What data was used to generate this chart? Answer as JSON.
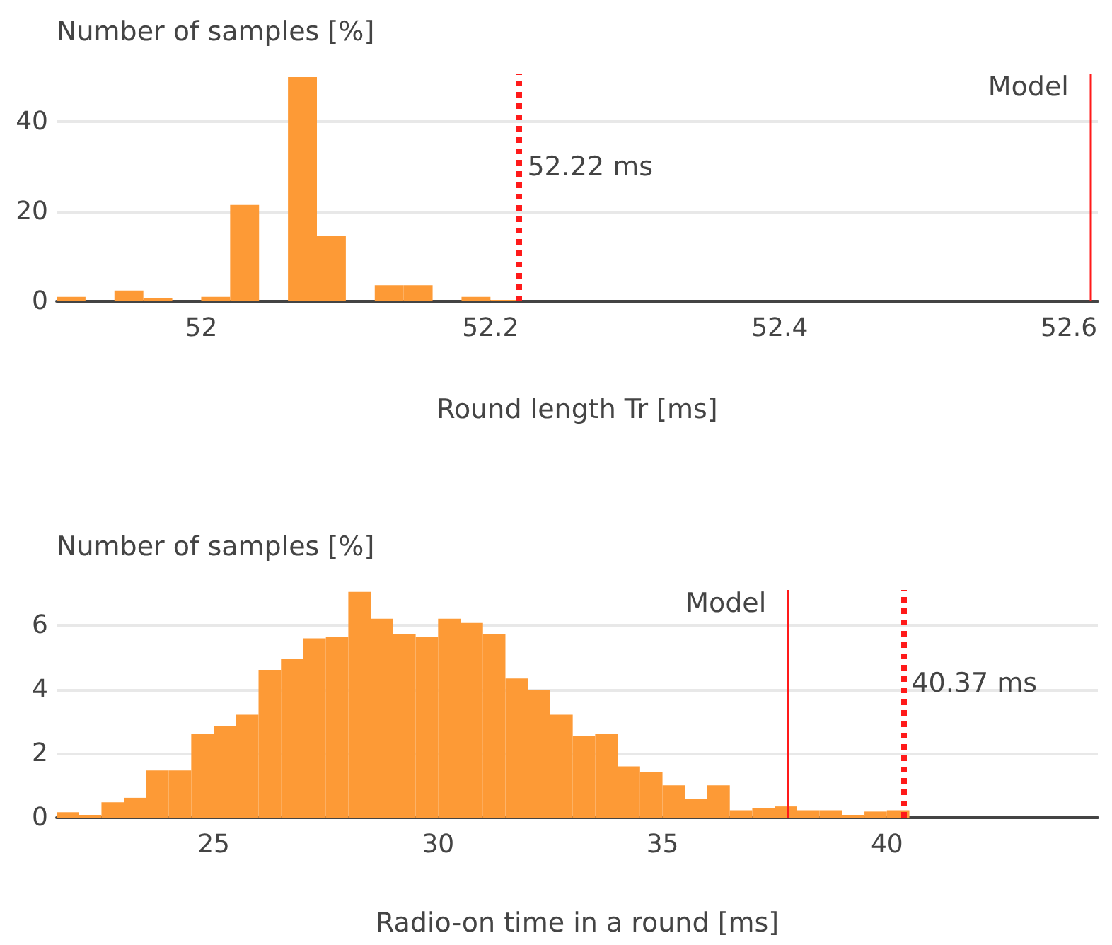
{
  "chart_data": [
    {
      "type": "histogram",
      "ylabel": "Number of samples [%]",
      "xlabel": "Round length Tr [ms]",
      "bins": [
        51.9,
        51.92,
        51.94,
        51.96,
        51.98,
        52.0,
        52.02,
        52.04,
        52.06,
        52.08,
        52.1,
        52.12,
        52.14,
        52.16,
        52.18,
        52.2,
        52.22
      ],
      "values": [
        1.0,
        0,
        2.4,
        0.7,
        0,
        1.0,
        21.5,
        0,
        50,
        14.5,
        0,
        3.6,
        3.6,
        0,
        1.0,
        0.3
      ],
      "color": "#fd9a36",
      "xlim": [
        51.9,
        52.62
      ],
      "xticks": [
        52,
        52.2,
        52.4,
        52.6
      ],
      "ylim": [
        0,
        50.8
      ],
      "yticks": [
        0,
        20,
        40
      ],
      "grid": "y",
      "ref_lines": [
        {
          "axis": "x",
          "value": 52.22,
          "label": "52.22 ms",
          "color": "#ff1a1a",
          "line_style": "dotted"
        },
        {
          "axis": "x",
          "value": 52.615,
          "label": "Model",
          "color": "#ff1a1a",
          "line_style": "solid"
        }
      ]
    },
    {
      "type": "histogram",
      "ylabel": "Number of samples [%]",
      "xlabel": "Radio-on time in a round [ms]",
      "bins": [
        21.5,
        22.0,
        22.5,
        23.0,
        23.5,
        24.0,
        24.5,
        25.0,
        25.5,
        26.0,
        26.5,
        27.0,
        27.5,
        28.0,
        28.5,
        29.0,
        29.5,
        30.0,
        30.5,
        31.0,
        31.5,
        32.0,
        32.5,
        33.0,
        33.5,
        34.0,
        34.5,
        35.0,
        35.5,
        36.0,
        36.5,
        37.0,
        37.5,
        38.0,
        38.5,
        39.0,
        39.5,
        40.0,
        40.5
      ],
      "values": [
        0.17,
        0.09,
        0.48,
        0.62,
        1.47,
        1.47,
        2.62,
        2.86,
        3.21,
        4.61,
        4.94,
        5.59,
        5.64,
        7.04,
        6.2,
        5.72,
        5.64,
        6.2,
        6.07,
        5.72,
        4.34,
        3.99,
        3.21,
        2.56,
        2.6,
        1.6,
        1.43,
        1.01,
        0.58,
        1.01,
        0.23,
        0.3,
        0.35,
        0.23,
        0.23,
        0.09,
        0.19,
        0.23
      ],
      "color": "#fd9a36",
      "xlim": [
        21.5,
        44.7
      ],
      "xticks": [
        25,
        30,
        35,
        40
      ],
      "ylim": [
        0,
        7.1
      ],
      "yticks": [
        0,
        2,
        4,
        6
      ],
      "grid": "y",
      "ref_lines": [
        {
          "axis": "x",
          "value": 37.8,
          "label": "Model",
          "color": "#ff1a1a",
          "line_style": "solid"
        },
        {
          "axis": "x",
          "value": 40.37,
          "label": "40.37 ms",
          "color": "#ff1a1a",
          "line_style": "dotted"
        }
      ]
    }
  ]
}
